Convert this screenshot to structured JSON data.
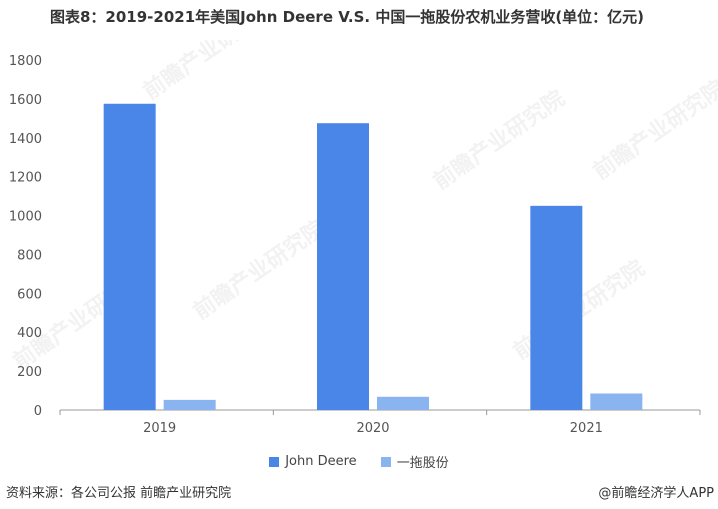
{
  "title": "图表8：2019-2021年美国John Deere V.S. 中国一拖股份农机业务营收(单位：亿元)",
  "source_text": "资料来源：各公司公报 前瞻产业研究院",
  "brand_text": "@前瞻经济学人APP",
  "watermark_text": "前瞻产业研究院",
  "colors": {
    "john_deere": "#4a86e8",
    "yituo": "#8ab4f0",
    "axis": "#999999",
    "text": "#555555"
  },
  "chart_data": {
    "type": "bar",
    "categories": [
      "2019",
      "2020",
      "2021"
    ],
    "series": [
      {
        "name": "John Deere",
        "values": [
          1575,
          1475,
          1050
        ]
      },
      {
        "name": "一拖股份",
        "values": [
          52,
          68,
          85
        ]
      }
    ],
    "title": "图表8：2019-2021年美国John Deere V.S. 中国一拖股份农机业务营收(单位：亿元)",
    "xlabel": "",
    "ylabel": "",
    "ylim": [
      0,
      1800
    ],
    "yticks": [
      "0",
      "200",
      "400",
      "600",
      "800",
      "1000",
      "1200",
      "1400",
      "1600",
      "1800"
    ],
    "grid": false,
    "legend": "bottom"
  }
}
